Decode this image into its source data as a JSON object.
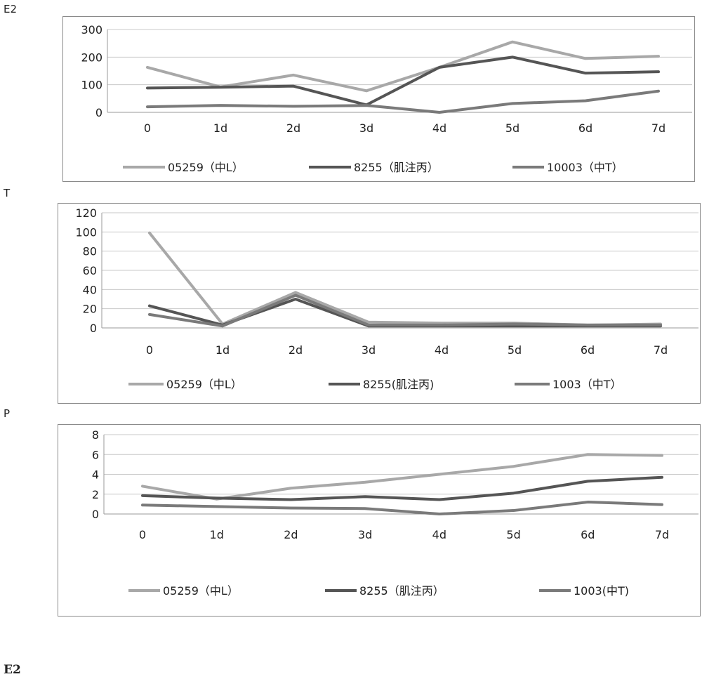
{
  "colors": {
    "light": "#a8a8a8",
    "dark": "#555555",
    "mid": "#7a7a7a",
    "grid": "#c8c8c8",
    "axis": "#9a9a9a"
  },
  "chart_data": [
    {
      "type": "line",
      "label": "E2",
      "title": "",
      "categories": [
        "0",
        "1d",
        "2d",
        "3d",
        "4d",
        "5d",
        "6d",
        "7d"
      ],
      "ylim": [
        0,
        300
      ],
      "yticks": [
        0,
        100,
        200,
        300
      ],
      "grid": true,
      "legend_position": "bottom",
      "series": [
        {
          "name": "05259（中L）",
          "color_key": "light",
          "values": [
            163,
            92,
            135,
            78,
            163,
            255,
            195,
            203
          ]
        },
        {
          "name": "8255（肌注丙）",
          "color_key": "dark",
          "values": [
            88,
            91,
            95,
            27,
            163,
            200,
            142,
            147
          ]
        },
        {
          "name": "10003（中T）",
          "color_key": "mid",
          "values": [
            20,
            25,
            22,
            25,
            0,
            32,
            42,
            77
          ]
        }
      ]
    },
    {
      "type": "line",
      "label": "T",
      "title": "",
      "categories": [
        "0",
        "1d",
        "2d",
        "3d",
        "4d",
        "5d",
        "6d",
        "7d"
      ],
      "ylim": [
        0,
        120
      ],
      "yticks": [
        0,
        20,
        40,
        60,
        80,
        100,
        120
      ],
      "grid": true,
      "legend_position": "bottom",
      "series": [
        {
          "name": "05259（中L）",
          "color_key": "light",
          "values": [
            99,
            4,
            37,
            6,
            5,
            5,
            3,
            4
          ]
        },
        {
          "name": "8255(肌注丙)",
          "color_key": "dark",
          "values": [
            23,
            3,
            30,
            2,
            2,
            2,
            2,
            2
          ]
        },
        {
          "name": "1003（中T）",
          "color_key": "mid",
          "values": [
            14,
            2,
            34,
            3,
            3,
            4,
            3,
            3
          ]
        }
      ]
    },
    {
      "type": "line",
      "label": "P",
      "title": "",
      "categories": [
        "0",
        "1d",
        "2d",
        "3d",
        "4d",
        "5d",
        "6d",
        "7d"
      ],
      "ylim": [
        0,
        8
      ],
      "yticks": [
        0,
        2,
        4,
        6,
        8
      ],
      "grid": true,
      "legend_position": "bottom",
      "series": [
        {
          "name": "05259（中L）",
          "color_key": "light",
          "values": [
            2.8,
            1.5,
            2.6,
            3.2,
            4.0,
            4.8,
            6.0,
            5.9
          ]
        },
        {
          "name": "8255（肌注丙）",
          "color_key": "dark",
          "values": [
            1.85,
            1.6,
            1.45,
            1.75,
            1.45,
            2.1,
            3.3,
            3.7
          ]
        },
        {
          "name": "1003(中T)",
          "color_key": "mid",
          "values": [
            0.9,
            0.75,
            0.6,
            0.55,
            0.0,
            0.35,
            1.2,
            0.95
          ]
        }
      ]
    }
  ],
  "footer": {
    "label": "E2"
  }
}
